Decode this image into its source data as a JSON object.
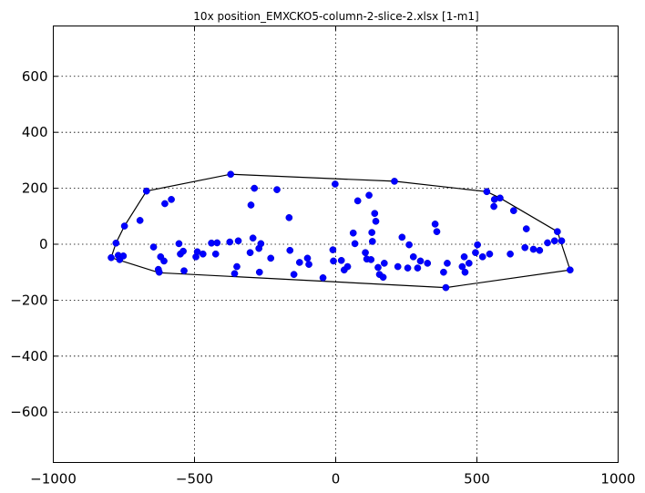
{
  "chart_data": {
    "type": "scatter",
    "title": "10x position_EMXCKO5-column-2-slice-2.xlsx   [1-m1]",
    "xlabel": "",
    "ylabel": "",
    "xlim": [
      -1000,
      1000
    ],
    "ylim": [
      -780,
      780
    ],
    "xticks": [
      -1000,
      -500,
      0,
      500,
      1000
    ],
    "yticks": [
      -600,
      -400,
      -200,
      0,
      200,
      400,
      600
    ],
    "xtick_labels": [
      "−1000",
      "−500",
      "0",
      "500",
      "1000"
    ],
    "ytick_labels": [
      "−600",
      "−400",
      "−200",
      "0",
      "200",
      "400",
      "600"
    ],
    "grid": true,
    "marker_color": "#0000ff",
    "hull_color": "#000000",
    "points": [
      {
        "x": -795,
        "y": -48
      },
      {
        "x": -778,
        "y": 4
      },
      {
        "x": -770,
        "y": -40
      },
      {
        "x": -765,
        "y": -55
      },
      {
        "x": -752,
        "y": -42
      },
      {
        "x": -748,
        "y": 65
      },
      {
        "x": -693,
        "y": 85
      },
      {
        "x": -670,
        "y": 190
      },
      {
        "x": -645,
        "y": -10
      },
      {
        "x": -628,
        "y": -90
      },
      {
        "x": -625,
        "y": -100
      },
      {
        "x": -620,
        "y": -45
      },
      {
        "x": -608,
        "y": -60
      },
      {
        "x": -605,
        "y": 145
      },
      {
        "x": -582,
        "y": 160
      },
      {
        "x": -555,
        "y": 2
      },
      {
        "x": -550,
        "y": -35
      },
      {
        "x": -540,
        "y": -25
      },
      {
        "x": -537,
        "y": -95
      },
      {
        "x": -495,
        "y": -45
      },
      {
        "x": -490,
        "y": -27
      },
      {
        "x": -470,
        "y": -35
      },
      {
        "x": -440,
        "y": 4
      },
      {
        "x": -425,
        "y": -35
      },
      {
        "x": -420,
        "y": 5
      },
      {
        "x": -375,
        "y": 8
      },
      {
        "x": -372,
        "y": 250
      },
      {
        "x": -358,
        "y": -105
      },
      {
        "x": -350,
        "y": -80
      },
      {
        "x": -345,
        "y": 12
      },
      {
        "x": -303,
        "y": -30
      },
      {
        "x": -300,
        "y": 140
      },
      {
        "x": -293,
        "y": 22
      },
      {
        "x": -288,
        "y": 200
      },
      {
        "x": -272,
        "y": -15
      },
      {
        "x": -270,
        "y": -100
      },
      {
        "x": -265,
        "y": 2
      },
      {
        "x": -230,
        "y": -50
      },
      {
        "x": -208,
        "y": 195
      },
      {
        "x": -165,
        "y": 95
      },
      {
        "x": -162,
        "y": -22
      },
      {
        "x": -148,
        "y": -108
      },
      {
        "x": -128,
        "y": -65
      },
      {
        "x": -100,
        "y": -50
      },
      {
        "x": -95,
        "y": -72
      },
      {
        "x": -45,
        "y": -120
      },
      {
        "x": -10,
        "y": -20
      },
      {
        "x": -8,
        "y": -60
      },
      {
        "x": -2,
        "y": 215
      },
      {
        "x": 20,
        "y": -58
      },
      {
        "x": 30,
        "y": -92
      },
      {
        "x": 42,
        "y": -80
      },
      {
        "x": 62,
        "y": 40
      },
      {
        "x": 68,
        "y": 2
      },
      {
        "x": 78,
        "y": 155
      },
      {
        "x": 105,
        "y": -30
      },
      {
        "x": 110,
        "y": -53
      },
      {
        "x": 118,
        "y": 175
      },
      {
        "x": 125,
        "y": -55
      },
      {
        "x": 128,
        "y": 42
      },
      {
        "x": 130,
        "y": 10
      },
      {
        "x": 138,
        "y": 110
      },
      {
        "x": 142,
        "y": 82
      },
      {
        "x": 150,
        "y": -83
      },
      {
        "x": 155,
        "y": -108
      },
      {
        "x": 168,
        "y": -118
      },
      {
        "x": 172,
        "y": -68
      },
      {
        "x": 208,
        "y": 225
      },
      {
        "x": 220,
        "y": -80
      },
      {
        "x": 235,
        "y": 25
      },
      {
        "x": 255,
        "y": -85
      },
      {
        "x": 260,
        "y": -2
      },
      {
        "x": 275,
        "y": -45
      },
      {
        "x": 290,
        "y": -85
      },
      {
        "x": 300,
        "y": -60
      },
      {
        "x": 325,
        "y": -68
      },
      {
        "x": 352,
        "y": 72
      },
      {
        "x": 358,
        "y": 45
      },
      {
        "x": 382,
        "y": -100
      },
      {
        "x": 390,
        "y": -155
      },
      {
        "x": 395,
        "y": -68
      },
      {
        "x": 448,
        "y": -80
      },
      {
        "x": 455,
        "y": -45
      },
      {
        "x": 458,
        "y": -100
      },
      {
        "x": 472,
        "y": -68
      },
      {
        "x": 495,
        "y": -30
      },
      {
        "x": 502,
        "y": -2
      },
      {
        "x": 520,
        "y": -45
      },
      {
        "x": 535,
        "y": 188
      },
      {
        "x": 545,
        "y": -35
      },
      {
        "x": 560,
        "y": 135
      },
      {
        "x": 562,
        "y": 160
      },
      {
        "x": 582,
        "y": 165
      },
      {
        "x": 618,
        "y": -35
      },
      {
        "x": 630,
        "y": 120
      },
      {
        "x": 670,
        "y": -12
      },
      {
        "x": 675,
        "y": 55
      },
      {
        "x": 700,
        "y": -18
      },
      {
        "x": 722,
        "y": -22
      },
      {
        "x": 750,
        "y": 5
      },
      {
        "x": 775,
        "y": 12
      },
      {
        "x": 785,
        "y": 45
      },
      {
        "x": 800,
        "y": 12
      },
      {
        "x": 830,
        "y": -92
      }
    ],
    "hull": [
      {
        "x": -795,
        "y": -48
      },
      {
        "x": -778,
        "y": 4
      },
      {
        "x": -748,
        "y": 65
      },
      {
        "x": -670,
        "y": 190
      },
      {
        "x": -372,
        "y": 250
      },
      {
        "x": 208,
        "y": 225
      },
      {
        "x": 535,
        "y": 188
      },
      {
        "x": 582,
        "y": 165
      },
      {
        "x": 785,
        "y": 45
      },
      {
        "x": 830,
        "y": -92
      },
      {
        "x": 390,
        "y": -155
      },
      {
        "x": -625,
        "y": -102
      },
      {
        "x": -795,
        "y": -48
      }
    ]
  }
}
